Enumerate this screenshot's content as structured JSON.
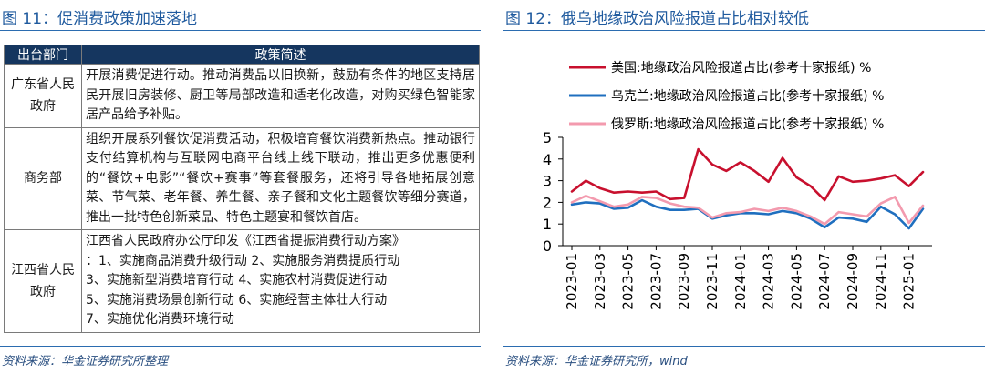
{
  "left": {
    "title": "图 11：促消费政策加速落地",
    "source": "资料来源：华金证券研究所整理",
    "table": {
      "headers": [
        "出台部门",
        "政策简述"
      ],
      "rows": [
        {
          "org": "广东省人民政府",
          "desc": "开展消费促进行动。推动消费品以旧换新，鼓励有条件的地区支持居民开展旧房装修、厨卫等局部改造和适老化改造，对购买绿色智能家居产品给予补贴。"
        },
        {
          "org": "商务部",
          "desc": "组织开展系列餐饮促消费活动，积极培育餐饮消费新热点。推动银行支付结算机构与互联网电商平台线上线下联动，推出更多优惠便利的“餐饮+电影”“餐饮+赛事”等套餐服务，还将引导各地拓展创意菜、节气菜、老年餐、养生餐、亲子餐和文化主题餐饮等细分赛道，推出一批特色创新菜品、特色主题宴和餐饮首店。"
        },
        {
          "org": "江西省人民政府",
          "desc_lines": [
            "江西省人民政府办公厅印发《江西省提振消费行动方案》",
            "：1、实施商品消费升级行动 2、实施服务消费提质行动",
            "3、实施新型消费培育行动 4、实施农村消费促进行动",
            "5、实施消费场景创新行动 6、实施经营主体壮大行动",
            "7、实施优化消费环境行动"
          ]
        }
      ]
    }
  },
  "right": {
    "title": "图 12：俄乌地缘政治风险报道占比相对较低",
    "source": "资料来源：华金证券研究所，wind"
  },
  "chart_data": {
    "type": "line",
    "title": "",
    "xlabel": "",
    "ylabel": "",
    "ylim": [
      0,
      5
    ],
    "yticks": [
      0,
      1,
      2,
      3,
      4,
      5
    ],
    "x": [
      "2023-01",
      "2023-02",
      "2023-03",
      "2023-04",
      "2023-05",
      "2023-06",
      "2023-07",
      "2023-08",
      "2023-09",
      "2023-10",
      "2023-11",
      "2023-12",
      "2024-01",
      "2024-02",
      "2024-03",
      "2024-04",
      "2024-05",
      "2024-06",
      "2024-07",
      "2024-08",
      "2024-09",
      "2024-10",
      "2024-11",
      "2024-12",
      "2025-01",
      "2025-02"
    ],
    "x_tick_labels": [
      "2023-01",
      "2023-03",
      "2023-05",
      "2023-07",
      "2023-09",
      "2023-11",
      "2024-01",
      "2024-03",
      "2024-05",
      "2024-07",
      "2024-09",
      "2024-11",
      "2025-01"
    ],
    "legend_position": "top-left",
    "series": [
      {
        "name": "美国:地缘政治风险报道占比(参考十家报纸) %",
        "color": "#c8102e",
        "values": [
          2.5,
          3.0,
          2.65,
          2.45,
          2.5,
          2.45,
          2.5,
          2.15,
          2.2,
          4.45,
          3.75,
          3.45,
          3.85,
          3.45,
          2.95,
          4.05,
          3.15,
          2.75,
          2.1,
          3.2,
          2.95,
          3.0,
          3.1,
          3.25,
          2.75,
          3.4
        ]
      },
      {
        "name": "乌克兰:地缘政治风险报道占比(参考十家报纸) %",
        "color": "#1f6fbf",
        "values": [
          1.9,
          2.0,
          1.95,
          1.7,
          1.75,
          2.1,
          1.8,
          1.65,
          1.65,
          1.7,
          1.25,
          1.4,
          1.5,
          1.5,
          1.45,
          1.6,
          1.5,
          1.25,
          0.85,
          1.3,
          1.25,
          1.1,
          1.8,
          1.45,
          0.8,
          1.7
        ]
      },
      {
        "name": "俄罗斯:地缘政治风险报道占比(参考十家报纸) %",
        "color": "#f39aae",
        "values": [
          2.0,
          2.3,
          2.05,
          1.8,
          1.9,
          2.25,
          2.2,
          1.95,
          1.8,
          1.75,
          1.3,
          1.5,
          1.55,
          1.7,
          1.6,
          1.75,
          1.6,
          1.35,
          1.0,
          1.55,
          1.45,
          1.35,
          1.95,
          2.25,
          1.05,
          1.85
        ]
      }
    ]
  }
}
